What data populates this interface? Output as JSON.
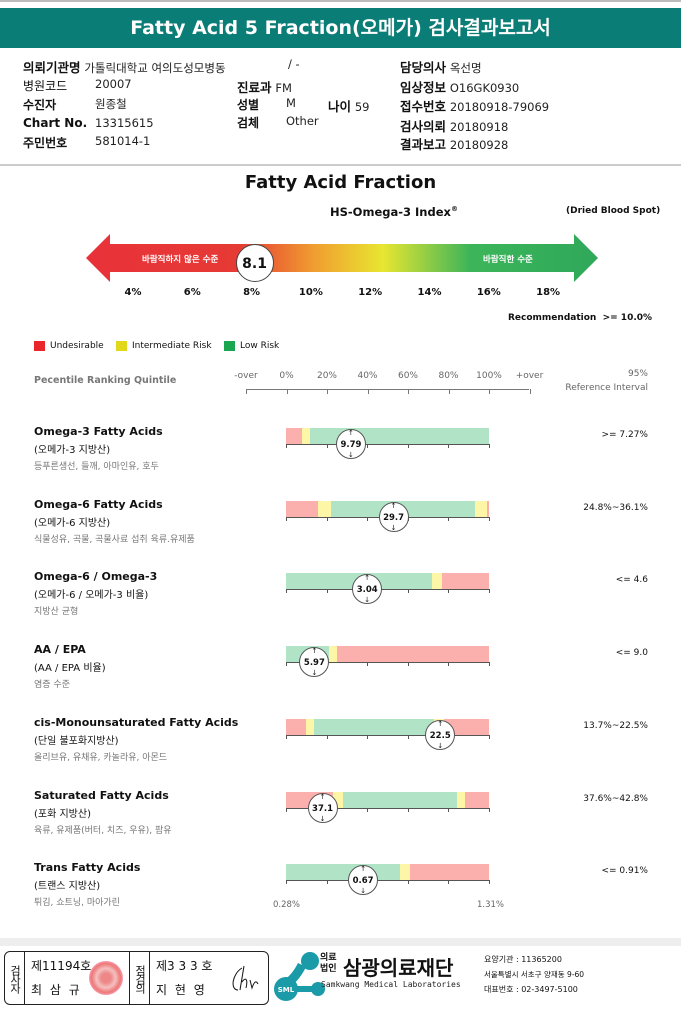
{
  "header": {
    "title": "Fatty Acid 5 Fraction(오메가) 검사결과보고서"
  },
  "info": {
    "institution_label": "의뢰기관명",
    "institution": "가톨릭대학교 여의도성모병동",
    "ward": "/ -",
    "doctor_label": "담당의사",
    "doctor": "옥선명",
    "hospital_code_label": "병원코드",
    "hospital_code": "20007",
    "dept_label": "진료과",
    "dept": "FM",
    "clinical_label": "임상정보",
    "clinical": "O16GK0930",
    "patient_label": "수진자",
    "patient": "원종철",
    "sex_label": "성별",
    "sex": "M",
    "age_label": "나이",
    "age": "59",
    "receipt_label": "접수번호",
    "receipt": "20180918-79069",
    "chart_label": "Chart No.",
    "chart": "13315615",
    "specimen_label": "검체",
    "specimen": "Other",
    "request_label": "검사의뢰",
    "request": "20180918",
    "id_label": "주민번호",
    "id": "581014-1",
    "report_label": "결과보고",
    "report": "20180928"
  },
  "index": {
    "title": "Fatty Acid Fraction",
    "subtitle": "HS-Omega-3 Index",
    "reg": "®",
    "specimen": "(Dried Blood Spot)",
    "bad_label": "바람직하지 않은 수준",
    "good_label": "바람직한 수준",
    "value": "8.1",
    "value_num": 8.1,
    "ticks": [
      "4%",
      "6%",
      "8%",
      "10%",
      "12%",
      "14%",
      "16%",
      "18%"
    ],
    "recommendation_label": "Recommendation",
    "recommendation": ">= 10.0%"
  },
  "legend": [
    {
      "label": "Undesirable",
      "color": "#e8262c"
    },
    {
      "label": "Intermediate Risk",
      "color": "#e0d818"
    },
    {
      "label": "Low Risk",
      "color": "#1aa551"
    }
  ],
  "scale": {
    "title": "Pecentile Ranking Quintile",
    "ticks": [
      "-over",
      "0%",
      "20%",
      "40%",
      "60%",
      "80%",
      "100%",
      "+over"
    ],
    "ref_line1": "95%",
    "ref_line2": "Reference Interval"
  },
  "colors": {
    "red": "#fbb0ae",
    "yellow": "#fdf6a6",
    "green": "#b1e4c6"
  },
  "rows": [
    {
      "name": "Omega-3 Fatty Acids",
      "kor": "(오메가-3 지방산)",
      "desc": "등푸른생선, 들깨, 아마인유, 호두",
      "value": "9.79",
      "pos": 32,
      "ref": ">= 7.27%",
      "segs": [
        [
          "red",
          8
        ],
        [
          "yellow",
          4
        ],
        [
          "green",
          88
        ]
      ]
    },
    {
      "name": "Omega-6 Fatty Acids",
      "kor": "(오메가-6 지방산)",
      "desc": "식물성유, 곡물, 곡물사료 섭취 육류.유제품",
      "value": "29.7",
      "pos": 53,
      "ref": "24.8%~36.1%",
      "segs": [
        [
          "red",
          16
        ],
        [
          "yellow",
          6
        ],
        [
          "green",
          71
        ],
        [
          "yellow",
          6
        ],
        [
          "red",
          1
        ]
      ]
    },
    {
      "name": "Omega-6 / Omega-3",
      "kor": "(오메가-6 / 오메가-3 비율)",
      "desc": "지방산 균형",
      "value": "3.04",
      "pos": 40,
      "ref": "<= 4.6",
      "segs": [
        [
          "green",
          72
        ],
        [
          "yellow",
          5
        ],
        [
          "red",
          23
        ]
      ]
    },
    {
      "name": "AA / EPA",
      "kor": "(AA / EPA 비율)",
      "desc": "염증 수준",
      "value": "5.97",
      "pos": 14,
      "ref": "<= 9.0",
      "segs": [
        [
          "green",
          21
        ],
        [
          "yellow",
          4
        ],
        [
          "red",
          75
        ]
      ]
    },
    {
      "name": "cis-Monounsaturated Fatty Acids",
      "kor": "(단일 불포화지방산)",
      "desc": "올리브유, 유채유, 카놀라유, 아몬드",
      "value": "22.5",
      "pos": 76,
      "ref": "13.7%~22.5%",
      "segs": [
        [
          "red",
          10
        ],
        [
          "yellow",
          4
        ],
        [
          "green",
          59
        ],
        [
          "yellow",
          5
        ],
        [
          "red",
          22
        ]
      ]
    },
    {
      "name": "Saturated Fatty Acids",
      "kor": "(포화 지방산)",
      "desc": "육류, 유제품(버터, 치즈, 우유), 팜유",
      "value": "37.1",
      "pos": 18,
      "ref": "37.6%~42.8%",
      "segs": [
        [
          "red",
          23
        ],
        [
          "yellow",
          5
        ],
        [
          "green",
          56
        ],
        [
          "yellow",
          4
        ],
        [
          "red",
          12
        ]
      ]
    },
    {
      "name": "Trans Fatty Acids",
      "kor": "(트랜스 지방산)",
      "desc": "튀김, 쇼트닝, 마아가린",
      "value": "0.67",
      "pos": 38,
      "ref": "<= 0.91%",
      "segs": [
        [
          "green",
          56
        ],
        [
          "yellow",
          5
        ],
        [
          "red",
          39
        ]
      ]
    }
  ],
  "trans_axis": {
    "min": "0.28%",
    "max": "1.31%"
  },
  "footer": {
    "examiner_label": "검사자",
    "examiner_no": "제11194호",
    "examiner": "최 삼 규",
    "confirm_label": "점검의",
    "confirm_no": "제3 3 3 호",
    "confirm": "지 현 영",
    "signature": "Chi",
    "logo_text": "SML",
    "org_prefix": "의료법인",
    "org": "삼광의료재단",
    "org_en": "Samkwang Medical Laboratories",
    "code": "요양기관 : 11365200",
    "address": "서울특별시 서초구 양재동 9-60",
    "phone": "대표번호 : 02-3497-5100",
    "brand_color": "#1b9aa8"
  }
}
